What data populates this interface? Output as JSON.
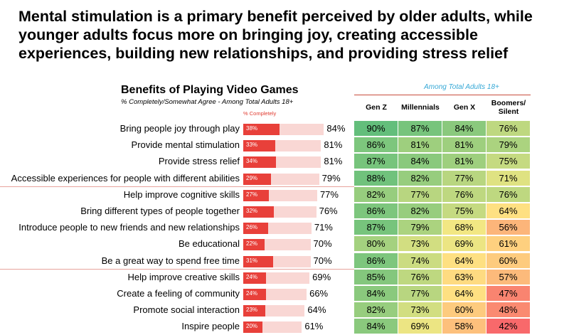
{
  "headline": "Mental stimulation is a primary benefit perceived by older adults, while younger adults focus more on bringing joy, creating accessible experiences, building new relationships, and providing stress relief",
  "chart_data": {
    "type": "table",
    "title": "Benefits of Playing Video Games",
    "subtitle": "% Completely/Somewhat Agree - Among Total Adults 18+",
    "bar_label": "% Completely",
    "group_label": "Among Total Adults 18+",
    "columns": [
      "Gen Z",
      "Millennials",
      "Gen X",
      "Boomers/ Silent"
    ],
    "rows": [
      {
        "label": "Bring people joy through play",
        "completely": 38,
        "total": 84,
        "gens": [
          90,
          87,
          84,
          76
        ]
      },
      {
        "label": "Provide mental stimulation",
        "completely": 33,
        "total": 81,
        "gens": [
          86,
          81,
          81,
          79
        ]
      },
      {
        "label": "Provide stress relief",
        "completely": 34,
        "total": 81,
        "gens": [
          87,
          84,
          81,
          75
        ]
      },
      {
        "label": "Accessible experiences for people with different abilities",
        "completely": 29,
        "total": 79,
        "gens": [
          88,
          82,
          77,
          71
        ]
      },
      {
        "label": "Help improve cognitive skills",
        "completely": 27,
        "total": 77,
        "gens": [
          82,
          77,
          76,
          76
        ]
      },
      {
        "label": "Bring different types of people together",
        "completely": 32,
        "total": 76,
        "gens": [
          86,
          82,
          75,
          64
        ]
      },
      {
        "label": "Introduce people to new friends and new relationships",
        "completely": 26,
        "total": 71,
        "gens": [
          87,
          79,
          68,
          56
        ]
      },
      {
        "label": "Be educational",
        "completely": 22,
        "total": 70,
        "gens": [
          80,
          73,
          69,
          61
        ]
      },
      {
        "label": "Be a great way to spend free time",
        "completely": 31,
        "total": 70,
        "gens": [
          86,
          74,
          64,
          60
        ]
      },
      {
        "label": "Help improve creative skills",
        "completely": 24,
        "total": 69,
        "gens": [
          85,
          76,
          63,
          57
        ]
      },
      {
        "label": "Create a feeling of community",
        "completely": 24,
        "total": 66,
        "gens": [
          84,
          77,
          64,
          47
        ]
      },
      {
        "label": "Promote social interaction",
        "completely": 23,
        "total": 64,
        "gens": [
          82,
          73,
          60,
          48
        ]
      },
      {
        "label": "Inspire people",
        "completely": 20,
        "total": 61,
        "gens": [
          84,
          69,
          58,
          42
        ]
      }
    ],
    "color_scale": {
      "low": "#f8696b",
      "mid": "#ffeb84",
      "high": "#63be7b",
      "min": 42,
      "max": 90
    }
  }
}
